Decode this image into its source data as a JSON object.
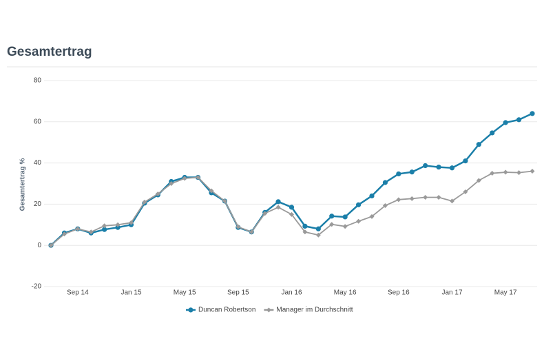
{
  "chart_data": {
    "type": "line",
    "title": "Gesamtertrag",
    "y_label": "Gesamtertrag %",
    "categories": [
      null,
      null,
      "Sep 14",
      null,
      null,
      null,
      "Jan 15",
      null,
      null,
      null,
      "May 15",
      null,
      null,
      null,
      "Sep 15",
      null,
      null,
      null,
      "Jan 16",
      null,
      null,
      null,
      "May 16",
      null,
      null,
      null,
      "Sep 16",
      null,
      null,
      null,
      "Jan 17",
      null,
      null,
      null,
      "May 17",
      null,
      null
    ],
    "series": [
      {
        "name": "Duncan Robertson",
        "color": "#1b7fa9",
        "marker": "circle",
        "values": [
          0,
          6,
          8,
          6,
          7.7,
          8.7,
          10,
          20.5,
          24.5,
          31,
          33,
          33,
          25.5,
          21.5,
          8.7,
          6.5,
          16,
          21.2,
          18.5,
          9.3,
          8,
          14.2,
          13.8,
          19.7,
          24,
          30.5,
          34.7,
          35.6,
          38.7,
          38,
          37.6,
          41,
          49,
          54.6,
          59.6,
          61,
          64
        ]
      },
      {
        "name": "Manager im Durchschnitt",
        "color": "#9a9a9a",
        "marker": "diamond",
        "values": [
          0,
          5.5,
          8,
          6.5,
          9.5,
          10,
          11,
          21,
          25,
          30,
          32.5,
          33,
          26.5,
          21.5,
          9,
          6.5,
          15.5,
          18.5,
          15,
          6.5,
          5,
          10.2,
          9.2,
          11.7,
          14,
          19.3,
          22.2,
          22.7,
          23.3,
          23.3,
          21.5,
          26,
          31.5,
          35,
          35.5,
          35.3,
          36
        ]
      }
    ],
    "ylim": [
      -20,
      80
    ],
    "yticks": [
      -20,
      0,
      20,
      40,
      60,
      80
    ],
    "grid": true,
    "legend": "bottom"
  }
}
